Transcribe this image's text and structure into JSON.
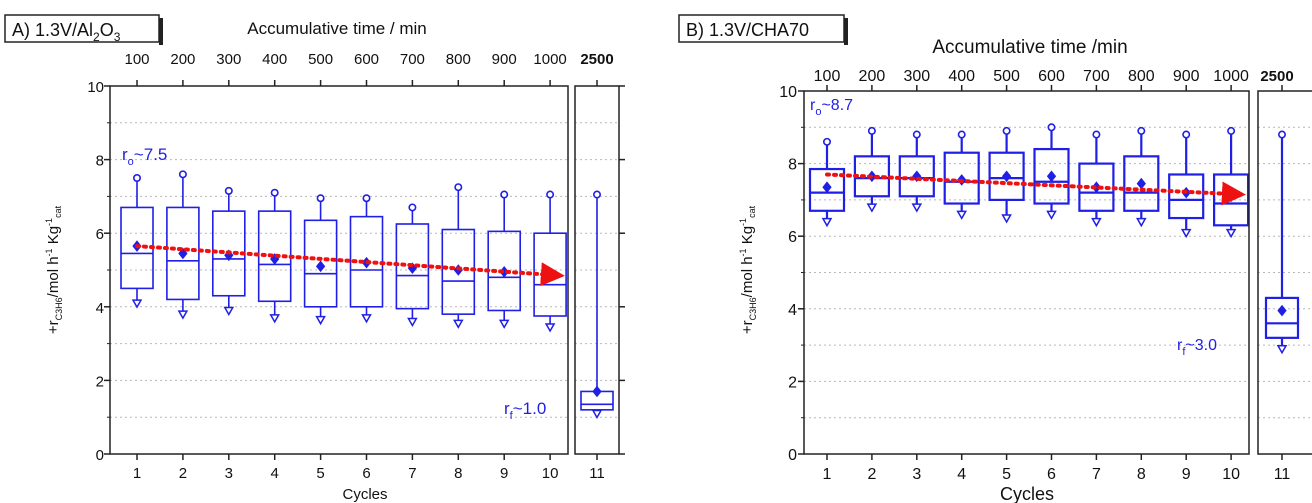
{
  "chart_data": [
    {
      "type": "box",
      "panel_label": "A) 1.3V/Al",
      "panel_label_sub": "2",
      "panel_label_after": "O",
      "panel_label_sub2": "3",
      "top_axis_label": "Accumulative time / min",
      "top_ticks": [
        "100",
        "200",
        "300",
        "400",
        "500",
        "600",
        "700",
        "800",
        "900",
        "1000"
      ],
      "break_tick": "2500",
      "xlabel": "Cycles",
      "ylabel": "+r",
      "ylabel_sub": "C3H6",
      "ylabel_units": "/mol h",
      "ylabel_sup1": "-1",
      "ylabel_kg": " Kg",
      "ylabel_sup2": "-1",
      "ylabel_sub2": "cat",
      "ylim": [
        0,
        10
      ],
      "yticks": [
        "0",
        "2",
        "4",
        "6",
        "8",
        "10"
      ],
      "categories": [
        "1",
        "2",
        "3",
        "4",
        "5",
        "6",
        "7",
        "8",
        "9",
        "10",
        "11"
      ],
      "boxes": [
        {
          "min": 4.1,
          "q1": 4.5,
          "median": 5.45,
          "q3": 6.7,
          "max": 7.5,
          "mean": 5.65
        },
        {
          "min": 3.8,
          "q1": 4.2,
          "median": 5.25,
          "q3": 6.7,
          "max": 7.6,
          "mean": 5.45
        },
        {
          "min": 3.9,
          "q1": 4.3,
          "median": 5.3,
          "q3": 6.6,
          "max": 7.15,
          "mean": 5.4
        },
        {
          "min": 3.7,
          "q1": 4.15,
          "median": 5.15,
          "q3": 6.6,
          "max": 7.1,
          "mean": 5.3
        },
        {
          "min": 3.65,
          "q1": 4.0,
          "median": 4.9,
          "q3": 6.35,
          "max": 6.95,
          "mean": 5.1
        },
        {
          "min": 3.7,
          "q1": 4.0,
          "median": 5.0,
          "q3": 6.45,
          "max": 6.95,
          "mean": 5.2
        },
        {
          "min": 3.6,
          "q1": 3.95,
          "median": 4.85,
          "q3": 6.25,
          "max": 6.7,
          "mean": 5.05
        },
        {
          "min": 3.55,
          "q1": 3.8,
          "median": 4.7,
          "q3": 6.1,
          "max": 7.25,
          "mean": 5.0
        },
        {
          "min": 3.55,
          "q1": 3.9,
          "median": 4.8,
          "q3": 6.05,
          "max": 7.05,
          "mean": 4.95
        },
        {
          "min": 3.45,
          "q1": 3.75,
          "median": 4.6,
          "q3": 6.0,
          "max": 7.05,
          "mean": 4.9
        },
        {
          "min": 1.1,
          "q1": 1.2,
          "median": 1.35,
          "q3": 1.7,
          "max": 7.05,
          "mean": 1.7
        }
      ],
      "trend_from": 5.65,
      "trend_to": 4.85,
      "annotation_start": "r",
      "annotation_start_sub": "o",
      "annotation_start_value": "~7.5",
      "annotation_end": "r",
      "annotation_end_sub": "f",
      "annotation_end_value": "~1.0",
      "colors": {
        "box": "#1f1fe6",
        "trend": "#ee1111",
        "axis": "#222222",
        "grid": "#b8b8b8"
      }
    },
    {
      "type": "box",
      "panel_label": "B) 1.3V/CHA70",
      "top_axis_label": "Accumulative time /min",
      "top_ticks": [
        "100",
        "200",
        "300",
        "400",
        "500",
        "600",
        "700",
        "800",
        "900",
        "1000"
      ],
      "break_tick": "2500",
      "xlabel": "Cycles",
      "ylabel": "+r",
      "ylabel_sub": "C3H6",
      "ylabel_units": "/mol h",
      "ylabel_sup1": "-1",
      "ylabel_kg": " Kg",
      "ylabel_sup2": "-1",
      "ylabel_sub2": "cat",
      "ylim": [
        0,
        10
      ],
      "yticks": [
        "0",
        "2",
        "4",
        "6",
        "8",
        "10"
      ],
      "categories": [
        "1",
        "2",
        "3",
        "4",
        "5",
        "6",
        "7",
        "8",
        "9",
        "10",
        "11"
      ],
      "boxes": [
        {
          "min": 6.4,
          "q1": 6.7,
          "median": 7.2,
          "q3": 7.85,
          "max": 8.6,
          "mean": 7.35
        },
        {
          "min": 6.8,
          "q1": 7.1,
          "median": 7.6,
          "q3": 8.2,
          "max": 8.9,
          "mean": 7.65
        },
        {
          "min": 6.8,
          "q1": 7.1,
          "median": 7.6,
          "q3": 8.2,
          "max": 8.8,
          "mean": 7.65
        },
        {
          "min": 6.6,
          "q1": 6.9,
          "median": 7.5,
          "q3": 8.3,
          "max": 8.8,
          "mean": 7.55
        },
        {
          "min": 6.5,
          "q1": 7.0,
          "median": 7.6,
          "q3": 8.3,
          "max": 8.9,
          "mean": 7.65
        },
        {
          "min": 6.6,
          "q1": 6.9,
          "median": 7.5,
          "q3": 8.4,
          "max": 9.0,
          "mean": 7.65
        },
        {
          "min": 6.4,
          "q1": 6.7,
          "median": 7.2,
          "q3": 8.0,
          "max": 8.8,
          "mean": 7.35
        },
        {
          "min": 6.4,
          "q1": 6.7,
          "median": 7.2,
          "q3": 8.2,
          "max": 8.9,
          "mean": 7.45
        },
        {
          "min": 6.1,
          "q1": 6.5,
          "median": 7.0,
          "q3": 7.7,
          "max": 8.8,
          "mean": 7.2
        },
        {
          "min": 6.1,
          "q1": 6.3,
          "median": 6.9,
          "q3": 7.7,
          "max": 8.9,
          "mean": 7.1
        },
        {
          "min": 2.9,
          "q1": 3.2,
          "median": 3.6,
          "q3": 4.3,
          "max": 8.8,
          "mean": 3.95
        }
      ],
      "trend_from": 7.7,
      "trend_to": 7.15,
      "annotation_start": "r",
      "annotation_start_sub": "o",
      "annotation_start_value": "~8.7",
      "annotation_end": "r",
      "annotation_end_sub": "f",
      "annotation_end_value": "~3.0",
      "colors": {
        "box": "#1f1fe6",
        "trend": "#ee1111",
        "axis": "#222222",
        "grid": "#b8b8b8"
      }
    }
  ]
}
